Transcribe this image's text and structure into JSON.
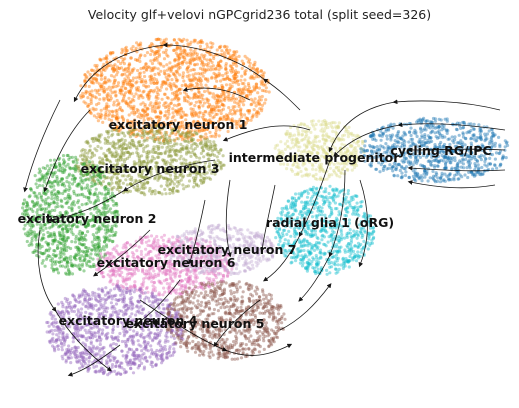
{
  "chart_data": {
    "type": "scatter",
    "title": "Velocity glf+velovi nGPCgrid236 total (split seed=326)",
    "xlabel": "",
    "ylabel": "",
    "grid": false,
    "legend": "on-data",
    "series": [
      {
        "name": "excitatory neuron 1",
        "color": "#ff7f0e"
      },
      {
        "name": "excitatory neuron 3",
        "color": "#8c9a3a"
      },
      {
        "name": "excitatory neuron 2",
        "color": "#2ca02c"
      },
      {
        "name": "excitatory neuron 6",
        "color": "#e377c2"
      },
      {
        "name": "excitatory neuron 7",
        "color": "#c5b0d5"
      },
      {
        "name": "excitatory neuron 4",
        "color": "#9467bd"
      },
      {
        "name": "excitatory neuron 5",
        "color": "#8c564b"
      },
      {
        "name": "intermediate progenitor",
        "color": "#dbdb8d"
      },
      {
        "name": "cycling RG/IPC",
        "color": "#1f77b4"
      },
      {
        "name": "radial glia 1 (oRG)",
        "color": "#17becf"
      }
    ]
  }
}
